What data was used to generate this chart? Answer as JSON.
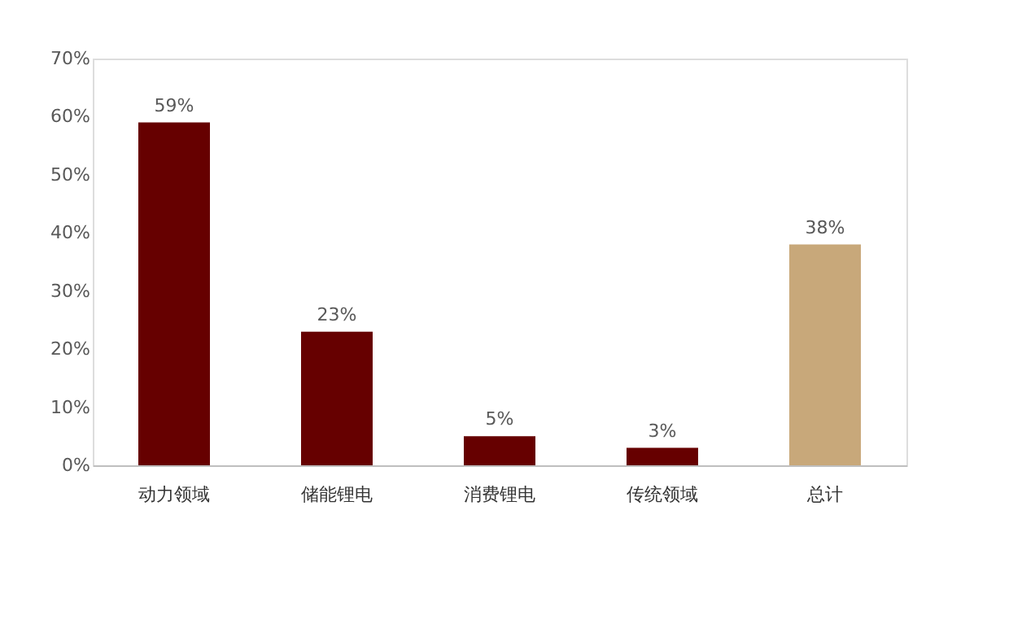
{
  "chart_data": {
    "type": "bar",
    "categories": [
      "动力领域",
      "储能锂电",
      "消费锂电",
      "传统领域",
      "总计"
    ],
    "values": [
      59,
      23,
      5,
      3,
      38
    ],
    "colors": [
      "#660000",
      "#660000",
      "#660000",
      "#660000",
      "#c8a87a"
    ],
    "value_labels": [
      "59%",
      "23%",
      "5%",
      "3%",
      "38%"
    ],
    "ylim": [
      0,
      70
    ],
    "yticks": [
      {
        "value": 0,
        "label": "0%"
      },
      {
        "value": 10,
        "label": "10%"
      },
      {
        "value": 20,
        "label": "20%"
      },
      {
        "value": 30,
        "label": "30%"
      },
      {
        "value": 40,
        "label": "40%"
      },
      {
        "value": 50,
        "label": "50%"
      },
      {
        "value": 60,
        "label": "60%"
      },
      {
        "value": 70,
        "label": "70%"
      }
    ],
    "grid": false
  }
}
